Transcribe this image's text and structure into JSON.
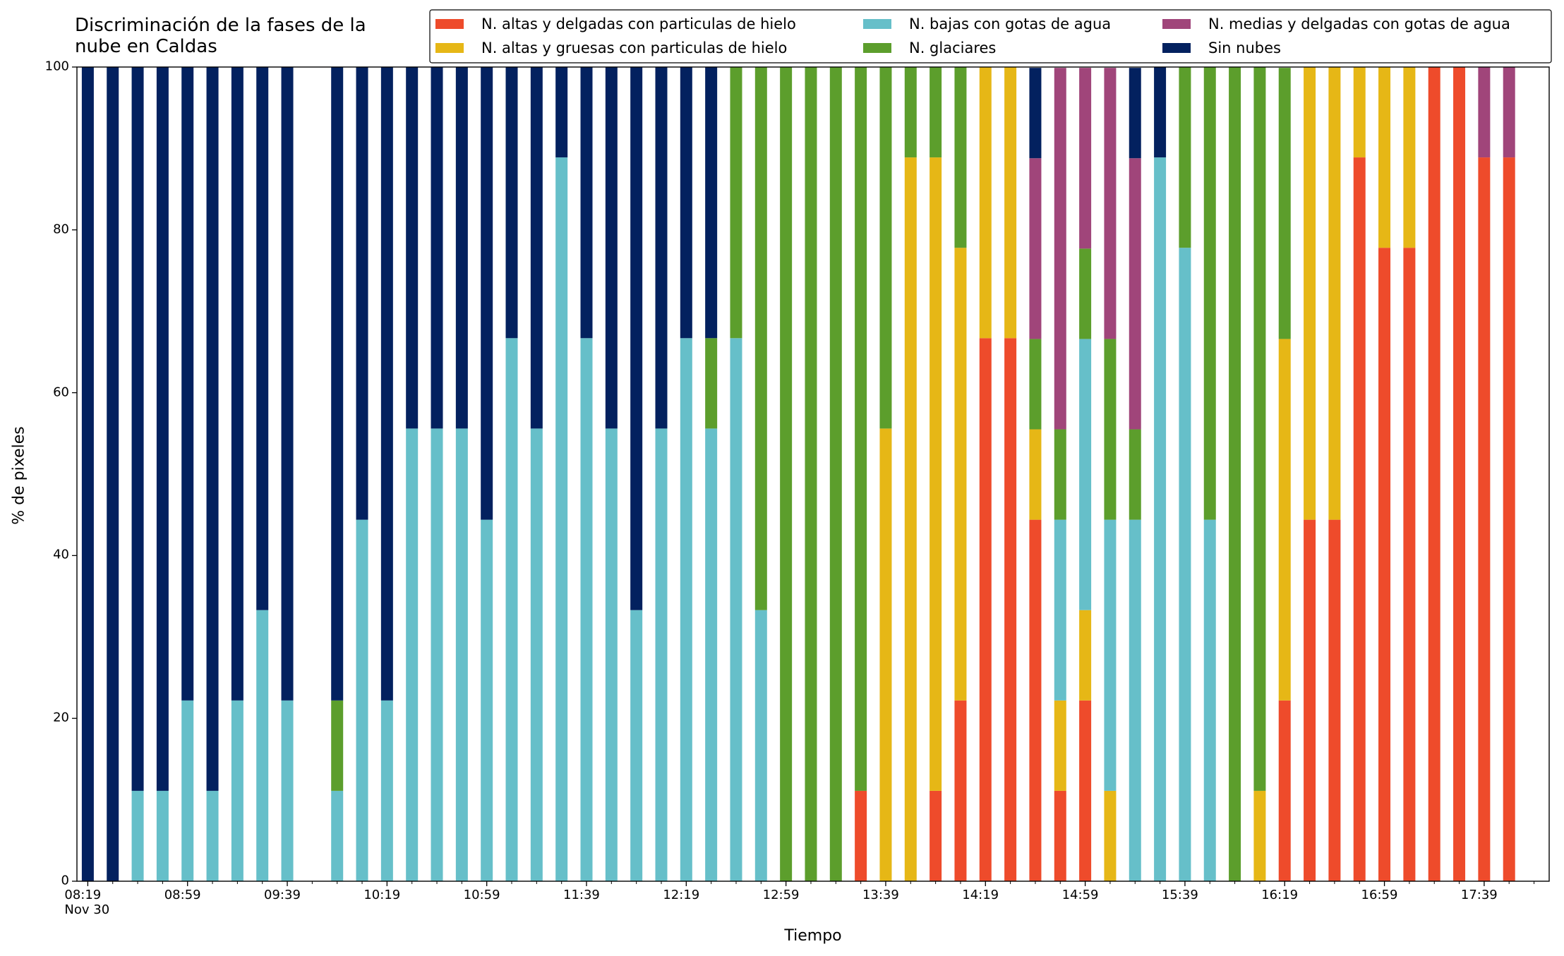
{
  "chart_data": {
    "type": "stacked_bar",
    "title": "Discriminación de la fases de la\nnube en Caldas",
    "x_label": "Tiempo",
    "y_label": "% de pixeles",
    "categories": [
      "08:19\nNov 30",
      null,
      null,
      null,
      "08:59",
      null,
      null,
      null,
      "09:39",
      null,
      null,
      null,
      "10:19",
      null,
      null,
      null,
      "10:59",
      null,
      null,
      null,
      "11:39",
      null,
      null,
      null,
      "12:19",
      null,
      null,
      null,
      "12:59",
      null,
      null,
      null,
      "13:39",
      null,
      null,
      null,
      "14:19",
      null,
      null,
      null,
      "14:59",
      null,
      null,
      null,
      "15:39",
      null,
      null,
      null,
      "16:19",
      null,
      null,
      null,
      "16:59",
      null,
      null,
      null,
      "17:39",
      null
    ],
    "ylim": [
      0,
      100
    ],
    "yticks": [
      0,
      20,
      40,
      60,
      80,
      100
    ],
    "legend": "top-right",
    "legend_columns": 3,
    "series": [
      {
        "name": "N. altas y delgadas con particulas de hielo",
        "color": "#ee4b2b",
        "values": [
          0,
          0,
          0,
          0,
          0,
          0,
          0,
          0,
          0,
          null,
          0,
          0,
          0,
          0,
          0,
          0,
          0,
          0,
          0,
          0,
          0,
          0,
          0,
          0,
          0,
          0,
          0,
          0,
          0,
          0,
          0,
          11.1,
          0,
          0,
          11.1,
          22.2,
          66.7,
          66.7,
          44.4,
          11.1,
          22.2,
          0,
          0,
          0,
          0,
          0,
          0,
          0,
          22.2,
          44.4,
          44.4,
          88.9,
          77.8,
          77.8,
          100,
          100,
          88.9,
          88.9
        ]
      },
      {
        "name": "N. altas y gruesas con particulas de hielo",
        "color": "#e6b716",
        "values": [
          0,
          0,
          0,
          0,
          0,
          0,
          0,
          0,
          0,
          null,
          0,
          0,
          0,
          0,
          0,
          0,
          0,
          0,
          0,
          0,
          0,
          0,
          0,
          0,
          0,
          0,
          0,
          0,
          0,
          0,
          0,
          0,
          55.6,
          88.9,
          77.8,
          55.6,
          33.3,
          33.3,
          11.1,
          11.1,
          11.1,
          11.1,
          0,
          0,
          0,
          0,
          0,
          11.1,
          44.4,
          55.6,
          55.6,
          11.1,
          22.2,
          22.2,
          0,
          0,
          0,
          0
        ]
      },
      {
        "name": "N. bajas con gotas de agua",
        "color": "#66bfc9",
        "values": [
          0,
          0,
          11.1,
          11.1,
          22.2,
          11.1,
          22.2,
          33.3,
          22.2,
          null,
          11.1,
          44.4,
          22.2,
          55.6,
          55.6,
          55.6,
          44.4,
          66.7,
          55.6,
          88.9,
          66.7,
          55.6,
          33.3,
          55.6,
          66.7,
          55.6,
          66.7,
          33.3,
          0,
          0,
          0,
          0,
          0,
          0,
          0,
          0,
          0,
          0,
          0,
          22.2,
          33.3,
          33.3,
          44.4,
          88.9,
          77.8,
          44.4,
          0,
          0,
          0,
          0,
          0,
          0,
          0,
          0,
          0,
          0,
          0,
          0
        ]
      },
      {
        "name": "N. glaciares",
        "color": "#5c9e2c",
        "values": [
          0,
          0,
          0,
          0,
          0,
          0,
          0,
          0,
          0,
          null,
          11.1,
          0,
          0,
          0,
          0,
          0,
          0,
          0,
          0,
          0,
          0,
          0,
          0,
          0,
          0,
          11.1,
          33.3,
          66.7,
          100,
          100,
          100,
          88.9,
          44.4,
          11.1,
          11.1,
          22.2,
          0,
          0,
          11.1,
          11.1,
          11.1,
          22.2,
          11.1,
          0,
          22.2,
          55.6,
          100,
          88.9,
          33.3,
          0,
          0,
          0,
          0,
          0,
          0,
          0,
          0,
          0
        ]
      },
      {
        "name": "N. medias y delgadas con gotas de agua",
        "color": "#a0457a",
        "values": [
          0,
          0,
          0,
          0,
          0,
          0,
          0,
          0,
          0,
          null,
          0,
          0,
          0,
          0,
          0,
          0,
          0,
          0,
          0,
          0,
          0,
          0,
          0,
          0,
          0,
          0,
          0,
          0,
          0,
          0,
          0,
          0,
          0,
          0,
          0,
          0,
          0,
          0,
          22.2,
          44.4,
          22.2,
          33.3,
          33.3,
          0,
          0,
          0,
          0,
          0,
          0,
          0,
          0,
          0,
          0,
          0,
          0,
          0,
          11.1,
          11.1
        ]
      },
      {
        "name": "Sin nubes",
        "color": "#03215f",
        "values": [
          100,
          100,
          88.9,
          88.9,
          77.8,
          88.9,
          77.8,
          66.7,
          77.8,
          null,
          77.8,
          55.6,
          77.8,
          44.4,
          44.4,
          44.4,
          55.6,
          33.3,
          44.4,
          11.1,
          33.3,
          44.4,
          66.7,
          44.4,
          33.3,
          33.3,
          0,
          0,
          0,
          0,
          0,
          0,
          0,
          0,
          0,
          0,
          0,
          0,
          11.1,
          0,
          0,
          0,
          11.1,
          11.1,
          0,
          0,
          0,
          0,
          0,
          0,
          0,
          0,
          0,
          0,
          0,
          0,
          0,
          0
        ]
      }
    ]
  }
}
